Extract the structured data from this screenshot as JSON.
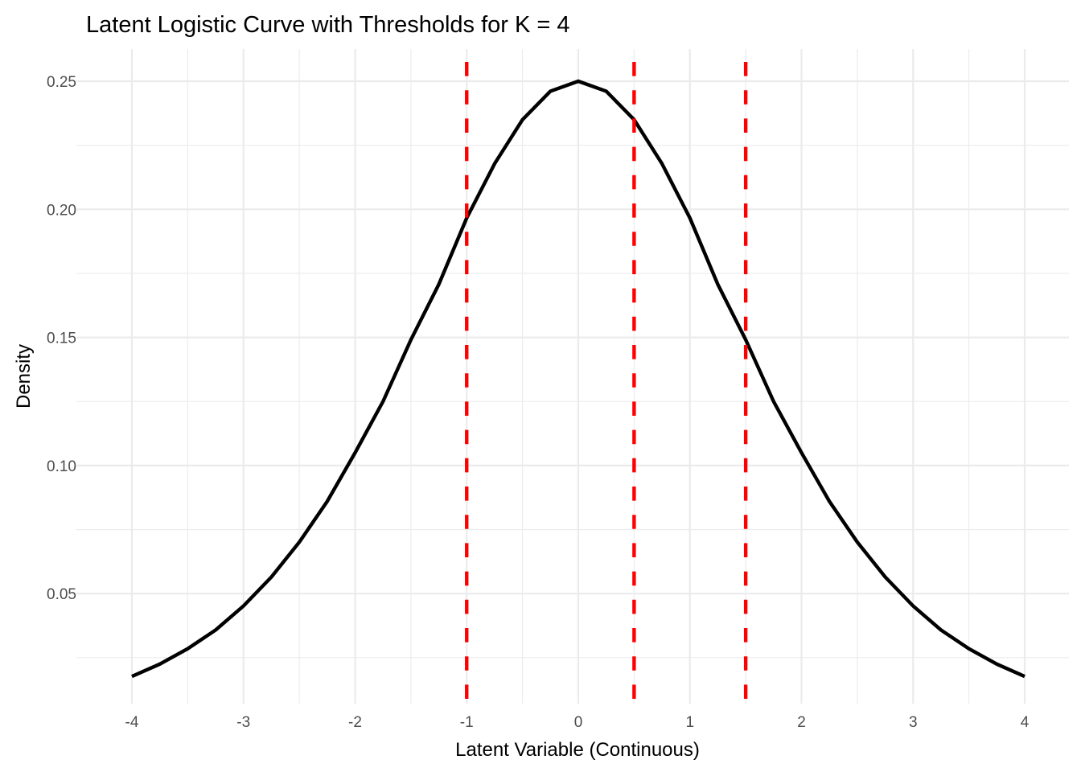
{
  "chart_data": {
    "type": "line",
    "title": "Latent Logistic Curve with Thresholds for K = 4",
    "xlabel": "Latent Variable (Continuous)",
    "ylabel": "Density",
    "xlim": [
      -4,
      4
    ],
    "ylim": [
      0.0177,
      0.25
    ],
    "grid": true,
    "legend": "none",
    "x_ticks": [
      -4,
      -3,
      -2,
      -1,
      0,
      1,
      2,
      3,
      4
    ],
    "x_tick_labels": [
      "-4",
      "-3",
      "-2",
      "-1",
      "0",
      "1",
      "2",
      "3",
      "4"
    ],
    "y_ticks": [
      0.05,
      0.1,
      0.15,
      0.2,
      0.25
    ],
    "y_tick_labels": [
      "0.05",
      "0.10",
      "0.15",
      "0.20",
      "0.25"
    ],
    "series": [
      {
        "kind": "curve",
        "color": "#000000",
        "x": [
          -4,
          -3.75,
          -3.5,
          -3.25,
          -3,
          -2.75,
          -2.5,
          -2.25,
          -2,
          -1.75,
          -1.5,
          -1.25,
          -1,
          -0.75,
          -0.5,
          -0.25,
          0,
          0.25,
          0.5,
          0.75,
          1,
          1.25,
          1.5,
          1.75,
          2,
          2.25,
          2.5,
          2.75,
          3,
          3.25,
          3.5,
          3.75,
          4
        ],
        "y": [
          0.0177,
          0.0225,
          0.0285,
          0.0358,
          0.0452,
          0.0565,
          0.0701,
          0.086,
          0.105,
          0.125,
          0.1491,
          0.1707,
          0.1966,
          0.2178,
          0.235,
          0.2461,
          0.25,
          0.2461,
          0.235,
          0.2178,
          0.1966,
          0.1707,
          0.1491,
          0.125,
          0.105,
          0.086,
          0.0701,
          0.0565,
          0.0452,
          0.0358,
          0.0285,
          0.0225,
          0.0177
        ]
      }
    ],
    "thresholds": {
      "color": "#ff0000",
      "style": "dashed",
      "x": [
        -1,
        0.5,
        1.5
      ]
    }
  }
}
